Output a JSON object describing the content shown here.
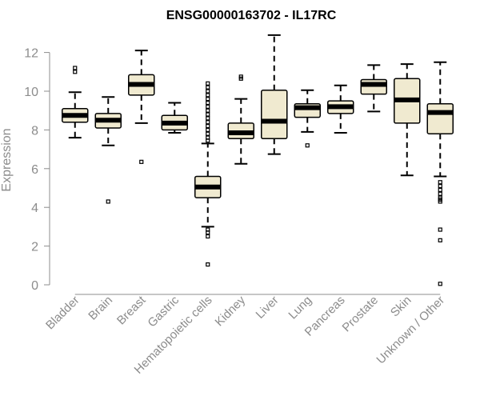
{
  "chart_data": {
    "type": "box",
    "title": "ENSG00000163702 - IL17RC",
    "xlabel": "",
    "ylabel": "Expression",
    "ylim": [
      0,
      12.5
    ],
    "yticks": [
      0,
      2,
      4,
      6,
      8,
      10,
      12
    ],
    "box_fill": "#f0ead0",
    "axis_color": "#8c8c8c",
    "categories": [
      "Bladder",
      "Brain",
      "Breast",
      "Gastric",
      "Hematopoietic cells",
      "Kidney",
      "Liver",
      "Lung",
      "Pancreas",
      "Prostate",
      "Skin",
      "Unknown / Other"
    ],
    "boxes": [
      {
        "name": "Bladder",
        "whisker_low": 7.6,
        "q1": 8.4,
        "median": 8.75,
        "q3": 9.1,
        "whisker_high": 9.95,
        "outliers": [
          11.0,
          11.2
        ]
      },
      {
        "name": "Brain",
        "whisker_low": 7.2,
        "q1": 8.1,
        "median": 8.5,
        "q3": 8.85,
        "whisker_high": 9.7,
        "outliers": [
          4.3
        ]
      },
      {
        "name": "Breast",
        "whisker_low": 8.35,
        "q1": 9.8,
        "median": 10.35,
        "q3": 10.85,
        "whisker_high": 12.1,
        "outliers": [
          6.35
        ]
      },
      {
        "name": "Gastric",
        "whisker_low": 7.85,
        "q1": 8.0,
        "median": 8.35,
        "q3": 8.75,
        "whisker_high": 9.4,
        "outliers": []
      },
      {
        "name": "Hematopoietic cells",
        "whisker_low": 3.0,
        "q1": 4.5,
        "median": 5.05,
        "q3": 5.6,
        "whisker_high": 7.3,
        "outliers": [
          10.4,
          10.2,
          10.0,
          9.8,
          9.6,
          9.4,
          9.2,
          9.0,
          8.8,
          8.6,
          8.4,
          8.2,
          8.0,
          7.8,
          7.6,
          7.45,
          2.85,
          2.7,
          2.5,
          1.05
        ]
      },
      {
        "name": "Kidney",
        "whisker_low": 6.25,
        "q1": 7.55,
        "median": 7.85,
        "q3": 8.35,
        "whisker_high": 9.6,
        "outliers": [
          10.65,
          10.75
        ]
      },
      {
        "name": "Liver",
        "whisker_low": 6.75,
        "q1": 7.55,
        "median": 8.45,
        "q3": 10.05,
        "whisker_high": 12.9,
        "outliers": []
      },
      {
        "name": "Lung",
        "whisker_low": 7.9,
        "q1": 8.65,
        "median": 9.15,
        "q3": 9.35,
        "whisker_high": 10.05,
        "outliers": [
          7.2
        ]
      },
      {
        "name": "Pancreas",
        "whisker_low": 7.85,
        "q1": 8.85,
        "median": 9.2,
        "q3": 9.5,
        "whisker_high": 10.3,
        "outliers": []
      },
      {
        "name": "Prostate",
        "whisker_low": 8.95,
        "q1": 9.85,
        "median": 10.35,
        "q3": 10.6,
        "whisker_high": 11.35,
        "outliers": []
      },
      {
        "name": "Skin",
        "whisker_low": 5.65,
        "q1": 8.35,
        "median": 9.55,
        "q3": 10.65,
        "whisker_high": 11.4,
        "outliers": []
      },
      {
        "name": "Unknown / Other",
        "whisker_low": 5.6,
        "q1": 7.8,
        "median": 8.9,
        "q3": 9.35,
        "whisker_high": 11.5,
        "outliers": [
          5.3,
          5.1,
          4.9,
          4.7,
          4.5,
          4.4,
          4.3,
          2.85,
          2.3,
          0.05
        ]
      }
    ]
  }
}
